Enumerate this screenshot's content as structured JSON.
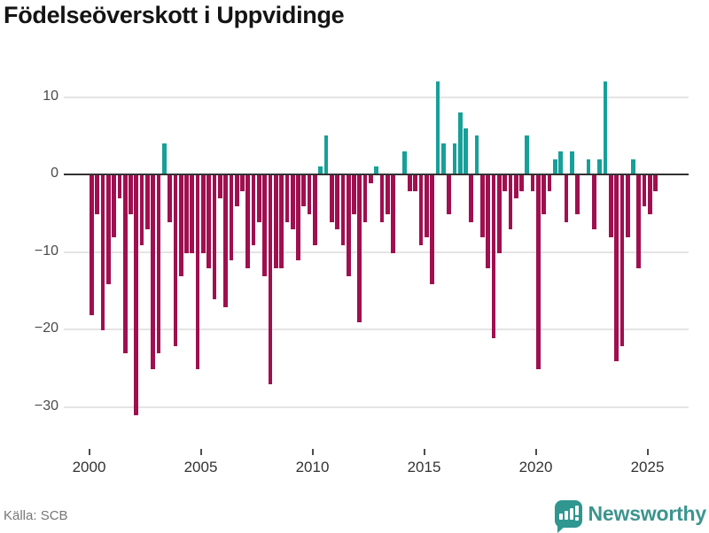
{
  "header": {
    "title": "Födelseöverskott i Uppvidinge"
  },
  "footer": {
    "source_label": "Källa: SCB",
    "brand_name": "Newsworthy",
    "brand_color": "#3d948e"
  },
  "chart_data": {
    "type": "bar",
    "title": "Födelseöverskott i Uppvidinge",
    "frequency": "quarterly",
    "x_start": "2000 Q1",
    "x_end": "2025 Q2",
    "grid": "horizontal",
    "legend": "none",
    "colors": {
      "positive": "#17a099",
      "negative": "#a00f50",
      "zero_line": "#333333",
      "gridline": "#e4e4e4"
    },
    "y_axis": {
      "ticks": [
        10,
        0,
        -10,
        -20,
        -30
      ],
      "tick_labels": [
        "10",
        "0",
        "−10",
        "−20",
        "−30"
      ],
      "range": [
        -33,
        13
      ]
    },
    "x_axis": {
      "tick_years": [
        2000,
        2005,
        2010,
        2015,
        2020,
        2025
      ],
      "tick_labels": [
        "2000",
        "2005",
        "2010",
        "2015",
        "2020",
        "2025"
      ]
    },
    "years": [
      {
        "year": 2000,
        "values": [
          -18,
          -5,
          -20,
          -14
        ]
      },
      {
        "year": 2001,
        "values": [
          -8,
          -3,
          -23,
          -5
        ]
      },
      {
        "year": 2002,
        "values": [
          -31,
          -9,
          -7,
          -25
        ]
      },
      {
        "year": 2003,
        "values": [
          -23,
          4,
          -6,
          -22
        ]
      },
      {
        "year": 2004,
        "values": [
          -13,
          -10,
          -10,
          -25
        ]
      },
      {
        "year": 2005,
        "values": [
          -10,
          -12,
          -16,
          -3
        ]
      },
      {
        "year": 2006,
        "values": [
          -17,
          -11,
          -4,
          -2
        ]
      },
      {
        "year": 2007,
        "values": [
          -12,
          -9,
          -6,
          -13
        ]
      },
      {
        "year": 2008,
        "values": [
          -27,
          -12,
          -12,
          -6
        ]
      },
      {
        "year": 2009,
        "values": [
          -7,
          -11,
          -4,
          -5
        ]
      },
      {
        "year": 2010,
        "values": [
          -9,
          1,
          5,
          -6
        ]
      },
      {
        "year": 2011,
        "values": [
          -7,
          -9,
          -13,
          -5
        ]
      },
      {
        "year": 2012,
        "values": [
          -19,
          -6,
          -1,
          1
        ]
      },
      {
        "year": 2013,
        "values": [
          -6,
          -5,
          -10,
          0
        ]
      },
      {
        "year": 2014,
        "values": [
          3,
          -2,
          -2,
          -9
        ]
      },
      {
        "year": 2015,
        "values": [
          -8,
          -14,
          12,
          4
        ]
      },
      {
        "year": 2016,
        "values": [
          -5,
          4,
          8,
          6
        ]
      },
      {
        "year": 2017,
        "values": [
          -6,
          5,
          -8,
          -12
        ]
      },
      {
        "year": 2018,
        "values": [
          -21,
          -10,
          -2,
          -7
        ]
      },
      {
        "year": 2019,
        "values": [
          -3,
          -2,
          5,
          -2
        ]
      },
      {
        "year": 2020,
        "values": [
          -25,
          -5,
          -2,
          2
        ]
      },
      {
        "year": 2021,
        "values": [
          3,
          -6,
          3,
          -5
        ]
      },
      {
        "year": 2022,
        "values": [
          0,
          2,
          -7,
          2
        ]
      },
      {
        "year": 2023,
        "values": [
          12,
          -8,
          -24,
          -22
        ]
      },
      {
        "year": 2024,
        "values": [
          -8,
          2,
          -12,
          -4
        ]
      },
      {
        "year": 2025,
        "values": [
          -5,
          -2
        ]
      }
    ]
  }
}
